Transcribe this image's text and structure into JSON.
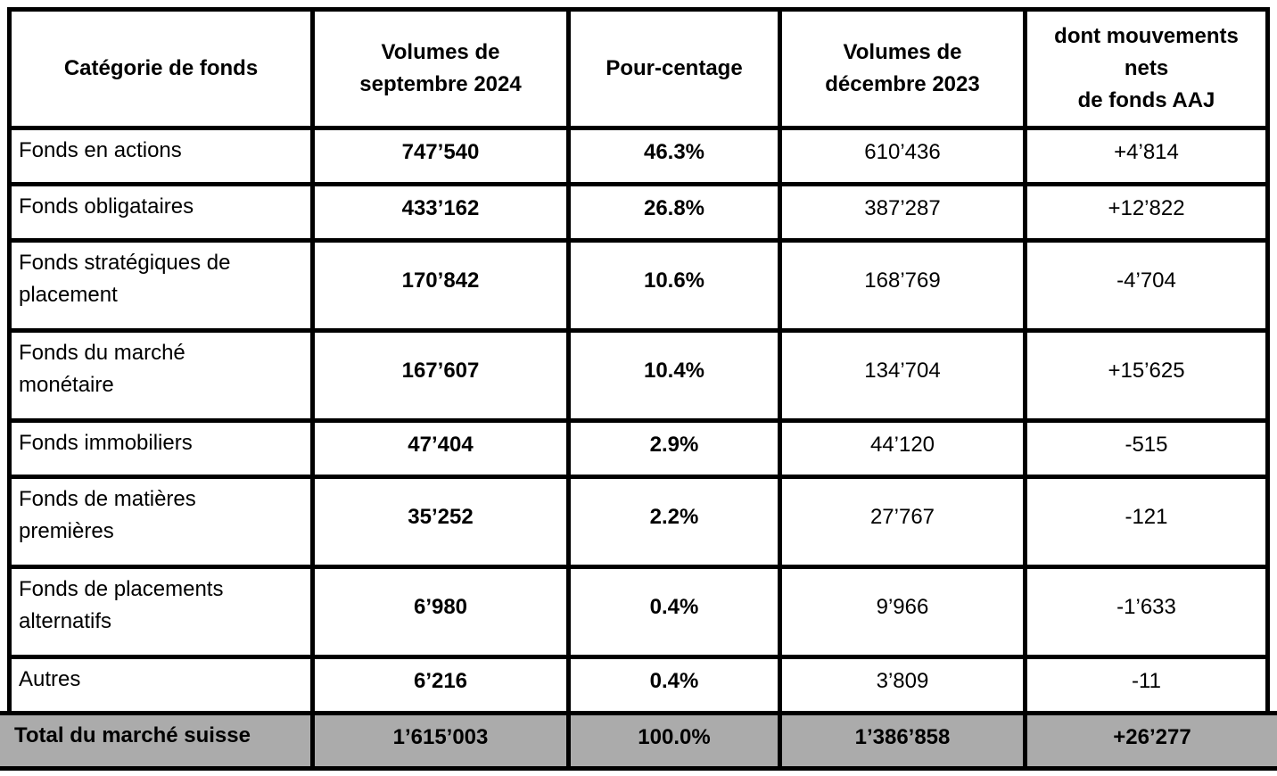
{
  "colors": {
    "border": "#000000",
    "total_row_background": "#ABABAB",
    "cell_background": "#FFFFFF",
    "text": "#000000"
  },
  "table": {
    "columns": [
      "Catégorie de fonds",
      "Volumes de\nseptembre 2024",
      "Pour-centage",
      "Volumes de\ndécembre 2023",
      "dont mouvements\nnets\nde fonds AAJ"
    ],
    "rows": [
      {
        "category": "Fonds en actions",
        "volume_sep_2024": "747’540",
        "percentage": "46.3%",
        "volume_dec_2023": "610’436",
        "net_movements": "+4’814"
      },
      {
        "category": "Fonds obligataires",
        "volume_sep_2024": "433’162",
        "percentage": "26.8%",
        "volume_dec_2023": "387’287",
        "net_movements": "+12’822"
      },
      {
        "category": "Fonds stratégiques de\nplacement",
        "volume_sep_2024": "170’842",
        "percentage": "10.6%",
        "volume_dec_2023": "168’769",
        "net_movements": "-4’704"
      },
      {
        "category": "Fonds du marché\nmonétaire",
        "volume_sep_2024": "167’607",
        "percentage": "10.4%",
        "volume_dec_2023": "134’704",
        "net_movements": "+15’625"
      },
      {
        "category": "Fonds immobiliers",
        "volume_sep_2024": "47’404",
        "percentage": "2.9%",
        "volume_dec_2023": "44’120",
        "net_movements": "-515"
      },
      {
        "category": "Fonds de matières\npremières",
        "volume_sep_2024": "35’252",
        "percentage": "2.2%",
        "volume_dec_2023": "27’767",
        "net_movements": "-121"
      },
      {
        "category": "Fonds de placements\nalternatifs",
        "volume_sep_2024": "6’980",
        "percentage": "0.4%",
        "volume_dec_2023": "9’966",
        "net_movements": "-1’633"
      },
      {
        "category": "Autres",
        "volume_sep_2024": "6’216",
        "percentage": "0.4%",
        "volume_dec_2023": "3’809",
        "net_movements": "-11"
      }
    ],
    "total": {
      "category": "Total du marché suisse",
      "volume_sep_2024": "1’615’003",
      "percentage": "100.0%",
      "volume_dec_2023": "1’386’858",
      "net_movements": "+26’277"
    }
  }
}
